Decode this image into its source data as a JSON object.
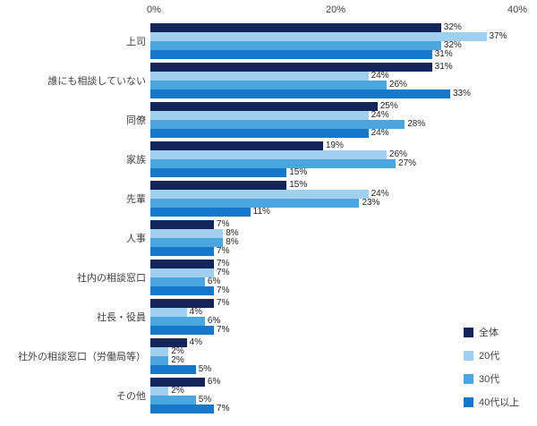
{
  "chart_data": {
    "type": "bar",
    "orientation": "horizontal",
    "title": "",
    "xlabel": "",
    "ylabel": "",
    "xlim": [
      0,
      40
    ],
    "x_ticks": [
      "0%",
      "20%",
      "40%"
    ],
    "value_suffix": "%",
    "grid": false,
    "legend_position": "bottom-right",
    "categories": [
      "上司",
      "誰にも相談していない",
      "同僚",
      "家族",
      "先輩",
      "人事",
      "社内の相談窓口",
      "社長・役員",
      "社外の相談窓口（労働局等）",
      "その他"
    ],
    "series": [
      {
        "name": "全体",
        "color": "#13265B",
        "values": [
          32,
          31,
          25,
          19,
          15,
          7,
          7,
          7,
          4,
          6
        ]
      },
      {
        "name": "20代",
        "color": "#A0CFF0",
        "values": [
          37,
          24,
          24,
          26,
          24,
          8,
          7,
          4,
          2,
          2
        ]
      },
      {
        "name": "30代",
        "color": "#4BA6E0",
        "values": [
          32,
          26,
          28,
          27,
          23,
          8,
          6,
          6,
          2,
          5
        ]
      },
      {
        "name": "40代以上",
        "color": "#1678C8",
        "values": [
          31,
          33,
          24,
          15,
          11,
          7,
          7,
          7,
          5,
          7
        ]
      }
    ]
  },
  "colors": {
    "axis_text": "#404040",
    "value_text": "#262626",
    "background": "#ffffff"
  }
}
